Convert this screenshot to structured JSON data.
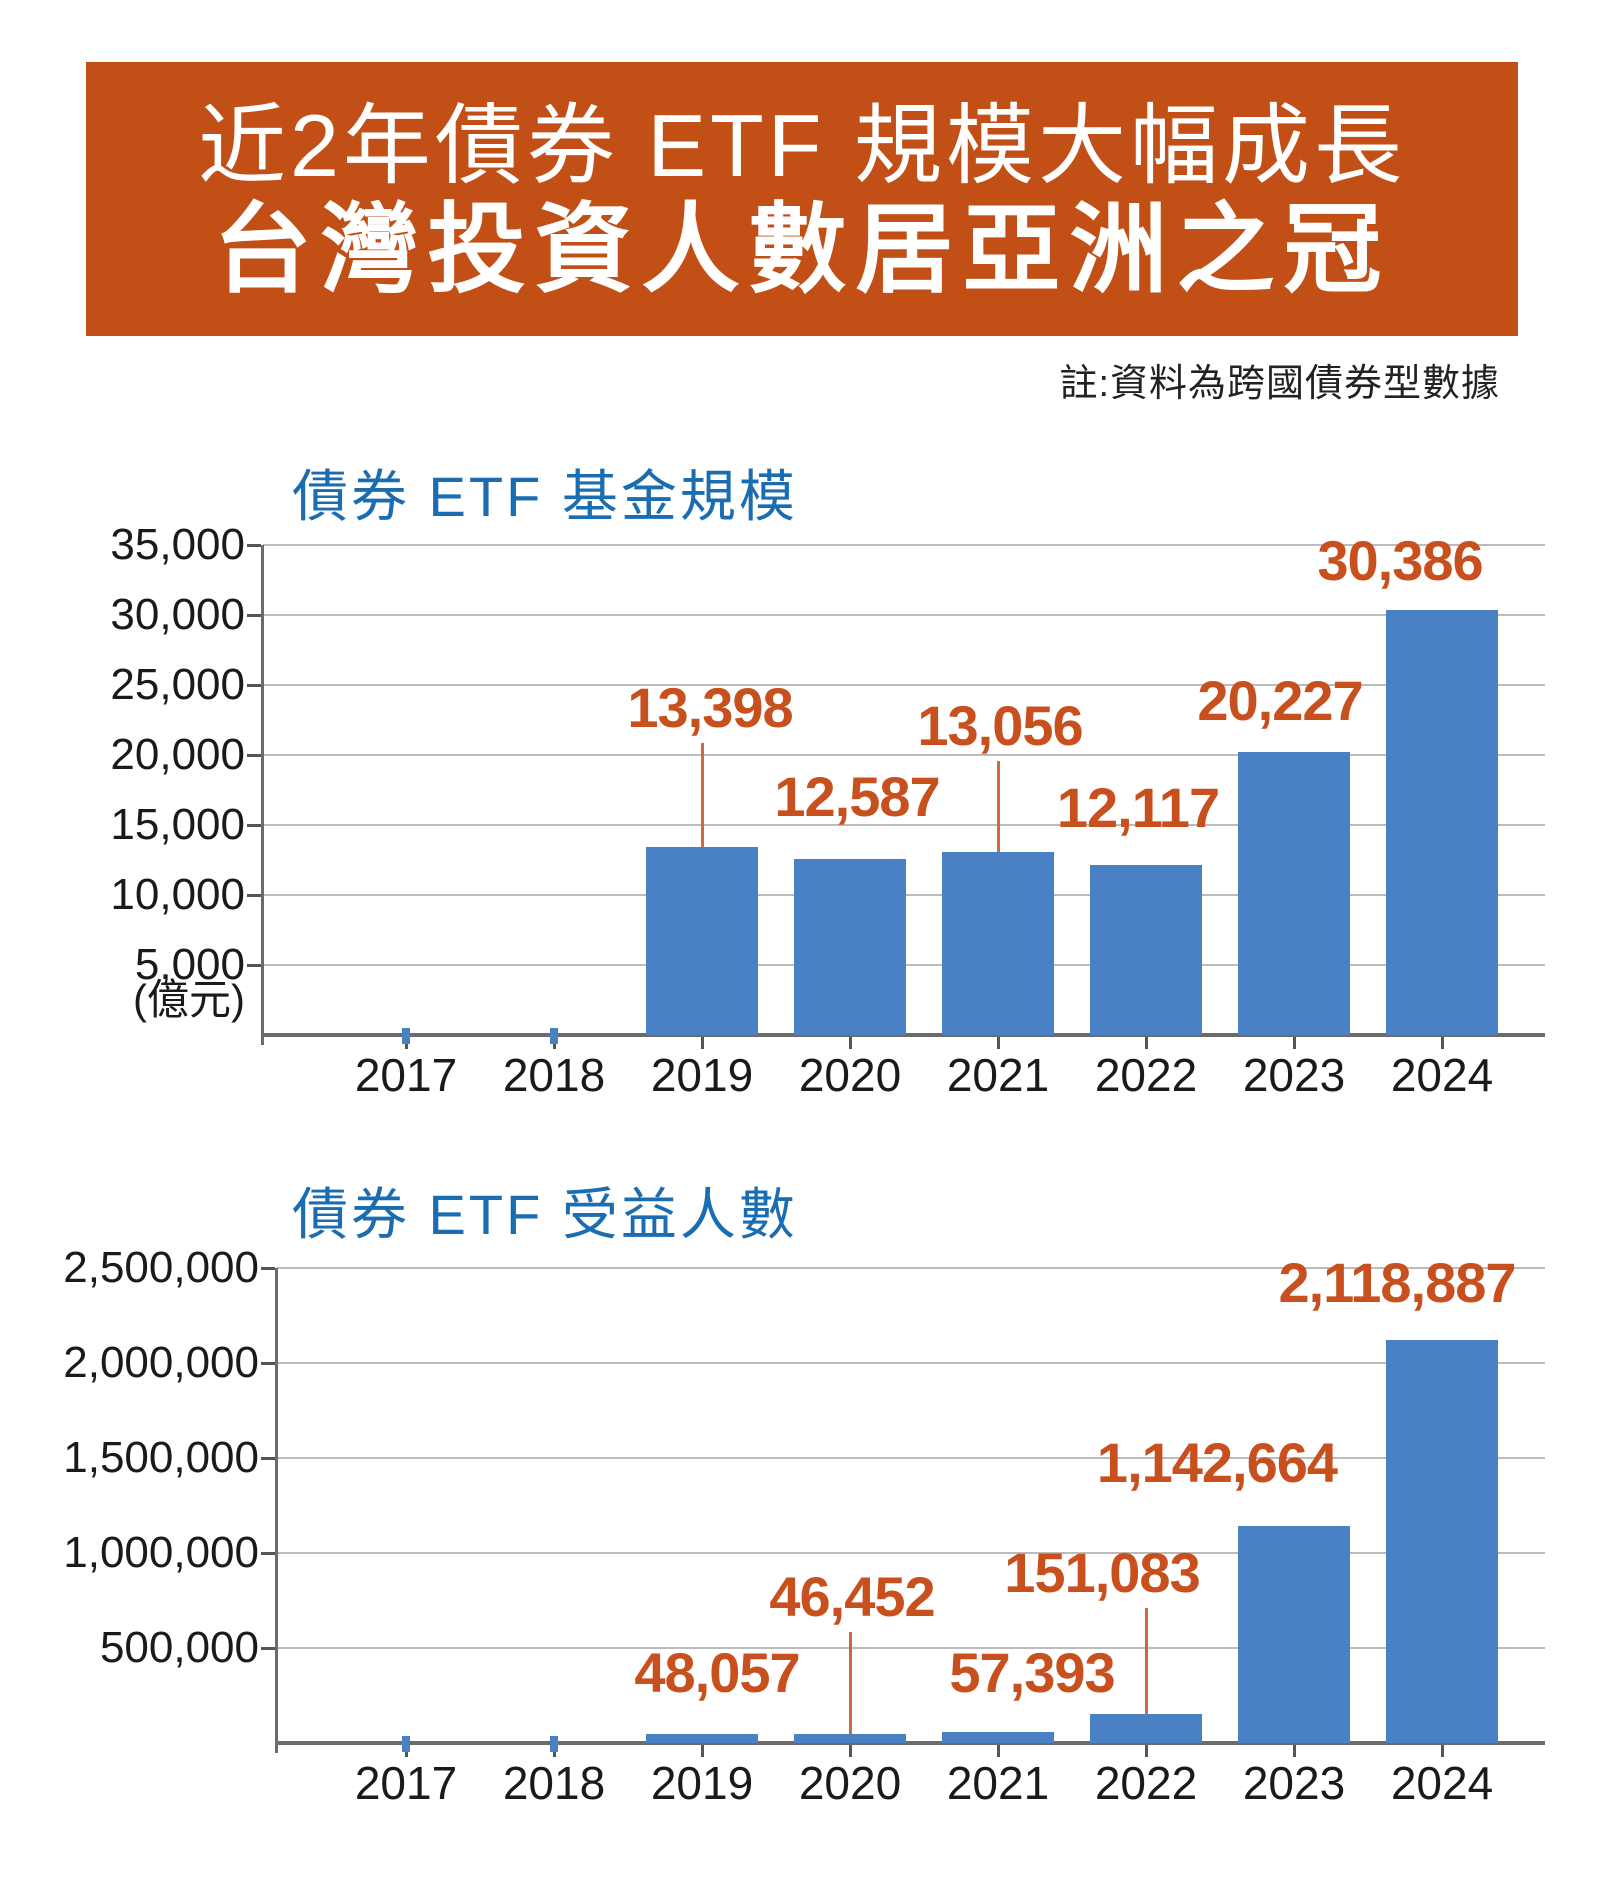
{
  "banner": {
    "line1": "近2年債券 ETF 規模大幅成長",
    "line2": "台灣投資人數居亞洲之冠"
  },
  "note": "註:資料為跨國債券型數據",
  "colors": {
    "banner_bg": "#C25016",
    "banner_text": "#FFFFFF",
    "title_blue": "#1B6DB2",
    "bar_blue": "#4A81C4",
    "label_orange": "#C8501E",
    "leader_orange": "#D2683F",
    "grid_gray": "#BCBCBC",
    "baseline_gray": "#6B6B6B",
    "tick_gray": "#555555",
    "axis_text": "#1A1A1A"
  },
  "chart_data": [
    {
      "type": "bar",
      "title": "債券 ETF 基金規模",
      "unit_label": "(億元)",
      "categories": [
        "2017",
        "2018",
        "2019",
        "2020",
        "2021",
        "2022",
        "2023",
        "2024"
      ],
      "values": [
        null,
        null,
        13398,
        12587,
        13056,
        12117,
        20227,
        30386
      ],
      "value_labels": [
        "",
        "",
        "13,398",
        "12,587",
        "13,056",
        "12,117",
        "20,227",
        "30,386"
      ],
      "ylim": [
        0,
        35000
      ],
      "ytick_labels": [
        "35,000",
        "30,000",
        "25,000",
        "20,000",
        "15,000",
        "10,000",
        "5,000"
      ],
      "grid": true,
      "legend": false,
      "callouts_with_leader_line": [
        "2019",
        "2021"
      ]
    },
    {
      "type": "bar",
      "title": "債券 ETF 受益人數",
      "unit_label": "",
      "categories": [
        "2017",
        "2018",
        "2019",
        "2020",
        "2021",
        "2022",
        "2023",
        "2024"
      ],
      "values": [
        null,
        null,
        48057,
        46452,
        57393,
        151083,
        1142664,
        2118887
      ],
      "value_labels": [
        "",
        "",
        "48,057",
        "46,452",
        "57,393",
        "151,083",
        "1,142,664",
        "2,118,887"
      ],
      "ylim": [
        0,
        2500000
      ],
      "ytick_labels": [
        "2,500,000",
        "2,000,000",
        "1,500,000",
        "1,000,000",
        "500,000"
      ],
      "grid": true,
      "legend": false,
      "callouts_with_leader_line": [
        "2020",
        "2022"
      ]
    }
  ]
}
